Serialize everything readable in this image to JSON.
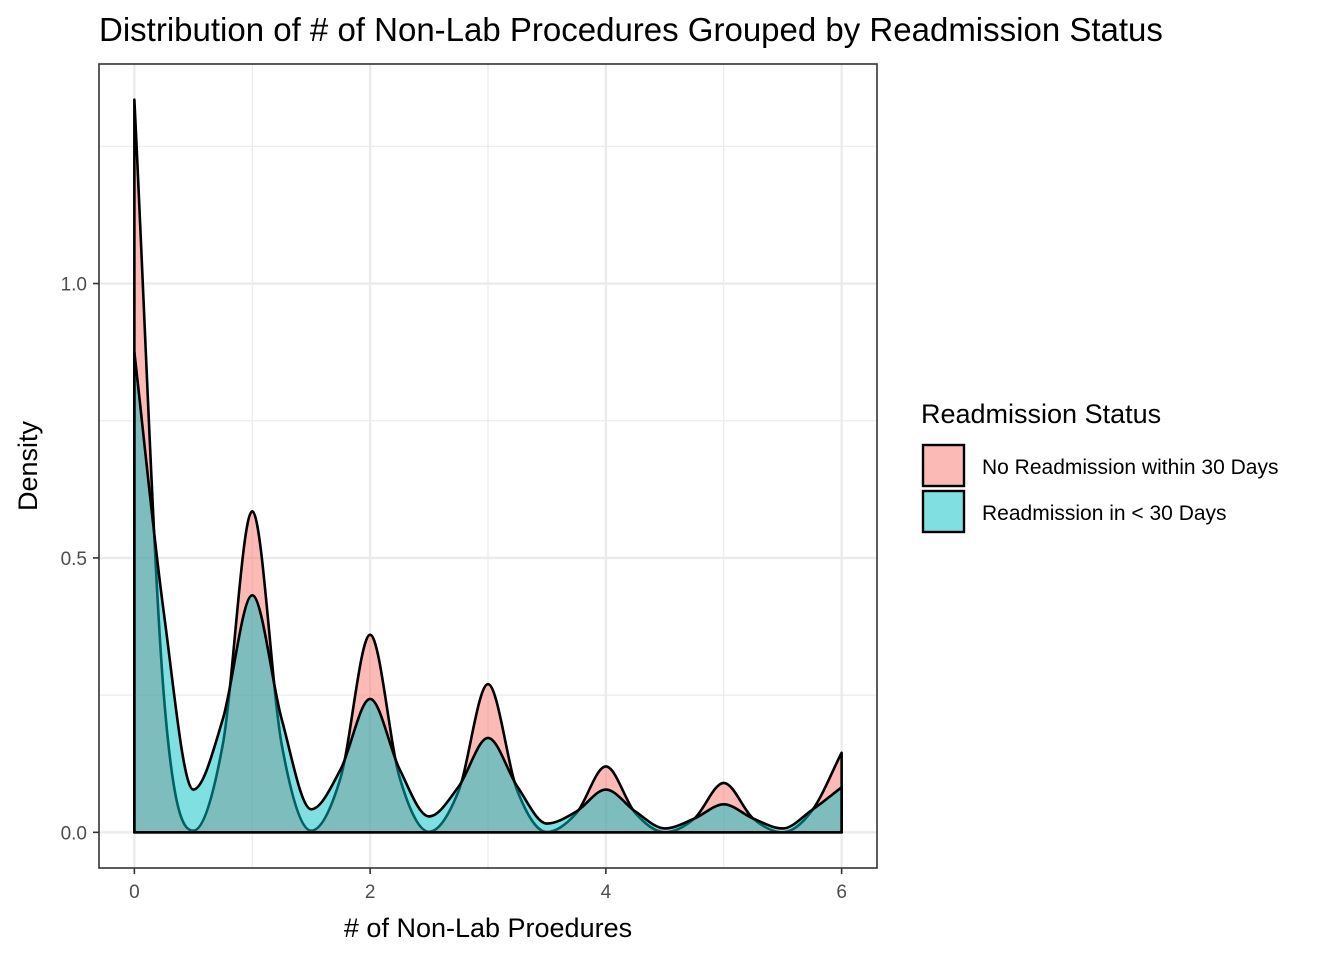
{
  "chart_data": {
    "type": "area",
    "subtype": "density",
    "title": "Distribution of # of Non-Lab Procedures Grouped by Readmission Status",
    "xlabel": "# of Non-Lab Proedures",
    "ylabel": "Density",
    "xlim": [
      -0.3,
      6.3
    ],
    "ylim": [
      -0.065,
      1.4
    ],
    "x_ticks": [
      0,
      2,
      4,
      6
    ],
    "x_tick_labels": [
      "0",
      "2",
      "4",
      "6"
    ],
    "y_ticks": [
      0.0,
      0.5,
      1.0
    ],
    "y_tick_labels": [
      "0.0",
      "0.5",
      "1.0"
    ],
    "grid": true,
    "legend": {
      "title": "Readmission Status",
      "placement": "right"
    },
    "series": [
      {
        "name": "No Readmission within 30 Days",
        "color": "#F8766D",
        "x": [
          0,
          0.25,
          0.5,
          0.75,
          1,
          1.25,
          1.5,
          1.75,
          2,
          2.25,
          2.5,
          2.75,
          3,
          3.25,
          3.5,
          3.75,
          4,
          4.25,
          4.5,
          4.75,
          5,
          5.25,
          5.5,
          5.75,
          6
        ],
        "values": [
          1.335,
          0.25,
          0.003,
          0.16,
          0.585,
          0.16,
          0.003,
          0.1,
          0.36,
          0.1,
          0.001,
          0.075,
          0.27,
          0.075,
          0.0005,
          0.035,
          0.12,
          0.035,
          0.0002,
          0.025,
          0.09,
          0.025,
          0.0001,
          0.04,
          0.145
        ]
      },
      {
        "name": "Readmission in < 30 Days",
        "color": "#00BFC4",
        "x": [
          0,
          0.25,
          0.5,
          0.75,
          1,
          1.25,
          1.5,
          1.75,
          2,
          2.25,
          2.5,
          2.75,
          3,
          3.25,
          3.5,
          3.75,
          4,
          4.25,
          4.5,
          4.75,
          5,
          5.25,
          5.5,
          5.75,
          6
        ],
        "values": [
          0.875,
          0.4,
          0.078,
          0.206,
          0.432,
          0.206,
          0.042,
          0.115,
          0.243,
          0.115,
          0.029,
          0.083,
          0.172,
          0.083,
          0.016,
          0.038,
          0.078,
          0.038,
          0.007,
          0.025,
          0.051,
          0.025,
          0.007,
          0.041,
          0.082
        ]
      }
    ]
  }
}
